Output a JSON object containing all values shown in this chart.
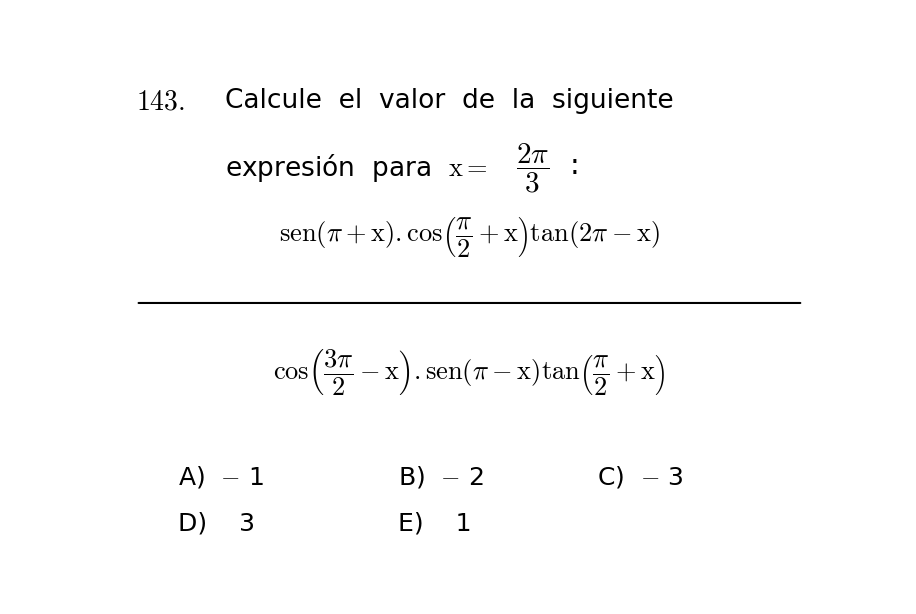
{
  "background_color": "#ffffff",
  "text_color": "#000000",
  "figsize": [
    9.16,
    6.14
  ],
  "dpi": 100,
  "fs_header": 19,
  "fs_math": 19,
  "fs_answers": 18
}
